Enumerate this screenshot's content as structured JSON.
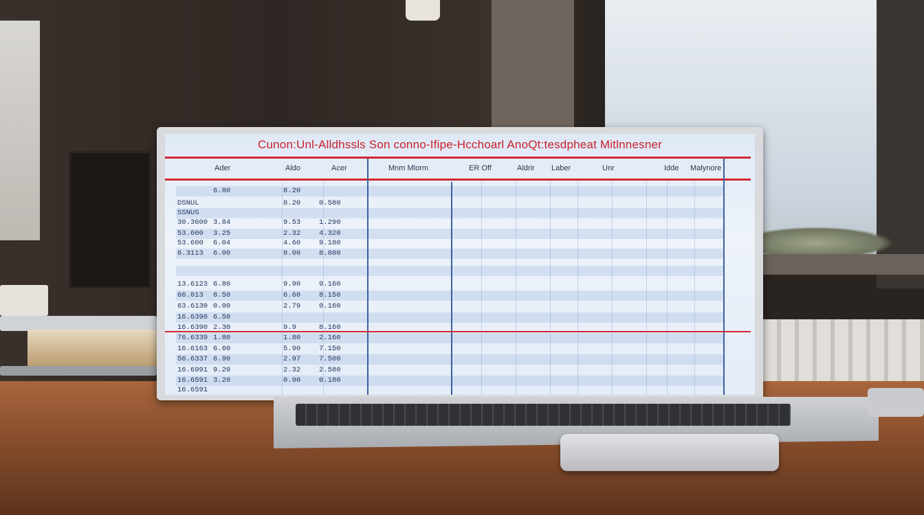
{
  "screen": {
    "title": "Cunon:Unl-Alldhssls Son conno-Ifipe-Hcchoarl AnoQt:tesdpheat  Mitlnnesner",
    "headers": [
      "Ader",
      "Aldo",
      "Acer",
      "Mnm  Mlorm",
      "ER Off",
      "Aldrir",
      "Laber",
      "Unr",
      "Idde",
      "Malynore"
    ],
    "rows": [
      [
        "",
        "6.80",
        "8.20",
        ""
      ],
      [
        "DSNUL",
        "",
        "8.20",
        "0.580"
      ],
      [
        "SSNUS",
        "",
        "",
        ""
      ],
      [
        "30.3600",
        "3.84",
        "9.53",
        "1.290"
      ],
      [
        "53.600",
        "3.25",
        "2.32",
        "4.320"
      ],
      [
        "53.600",
        "6.04",
        "4.60",
        "9.180"
      ],
      [
        "6.3113",
        "6.00",
        "8.00",
        "8.080"
      ],
      [
        "",
        "",
        "",
        ""
      ],
      [
        "",
        "",
        "",
        ""
      ],
      [
        "13.6123",
        "6.80",
        "9.90",
        "9.160"
      ],
      [
        "66.013",
        "8.50",
        "6.60",
        "8.150"
      ],
      [
        "63.6130",
        "0.00",
        "2.79",
        "0.160"
      ],
      [
        "16.6390",
        "6.50",
        "",
        ""
      ],
      [
        "16.6390",
        "2.30",
        "9.9",
        "8.160"
      ],
      [
        "76.6339",
        "1.80",
        "1.80",
        "2.160"
      ],
      [
        "16.6163",
        "6.60",
        "5.90",
        "7.150"
      ],
      [
        "56.6337",
        "6.90",
        "2.97",
        "7.500"
      ],
      [
        "16.6991",
        "9.20",
        "2.32",
        "2.580"
      ],
      [
        "16.6591",
        "3.20",
        "0.90",
        "0.180"
      ],
      [
        "16.6591",
        "",
        "",
        ""
      ]
    ]
  },
  "colors": {
    "title_red": "#c8202c",
    "grid_blue": "#3b5f9e",
    "desk": "#a8663d"
  }
}
